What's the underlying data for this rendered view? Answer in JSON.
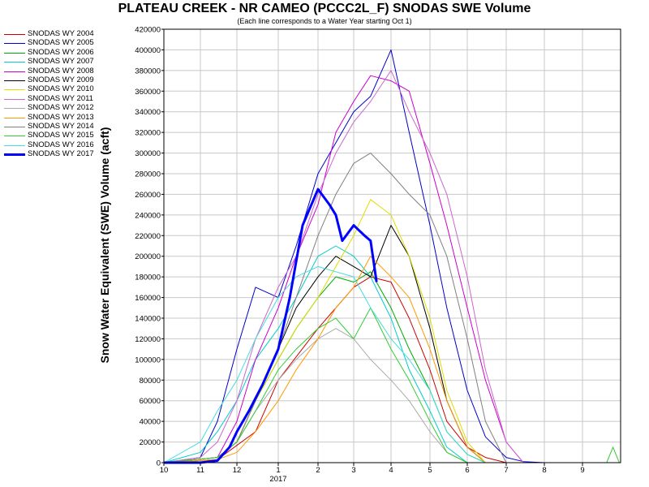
{
  "chart_data": {
    "type": "line",
    "title": "PLATEAU CREEK - NR CAMEO (PCCC2L_F) SNODAS SWE Volume",
    "subtitle": "(Each line corresponds to a Water Year starting Oct 1)",
    "ylabel": "Snow Water Equivalent (SWE) Volume (acft)",
    "xlabel": "",
    "x_year_label": "2017",
    "xticks": [
      "10",
      "11",
      "12",
      "1",
      "2",
      "3",
      "4",
      "5",
      "6",
      "7",
      "8",
      "9"
    ],
    "yticks": [
      "0",
      "20000",
      "40000",
      "60000",
      "80000",
      "100000",
      "120000",
      "140000",
      "160000",
      "180000",
      "200000",
      "220000",
      "240000",
      "260000",
      "280000",
      "300000",
      "320000",
      "340000",
      "360000",
      "380000",
      "400000",
      "420000"
    ],
    "ylim": [
      0,
      420000
    ],
    "grid": true,
    "legend_position": "left",
    "series": [
      {
        "name": "SNODAS WY 2004",
        "color": "#cc0000",
        "width": 1,
        "x": [
          "10-01",
          "11-15",
          "12-15",
          "01-01",
          "02-01",
          "03-01",
          "03-15",
          "04-01",
          "04-15",
          "05-01",
          "05-15",
          "06-01",
          "06-15",
          "07-01"
        ],
        "values": [
          0,
          3000,
          30000,
          80000,
          130000,
          170000,
          180000,
          175000,
          140000,
          90000,
          40000,
          15000,
          5000,
          0
        ]
      },
      {
        "name": "SNODAS WY 2005",
        "color": "#0000cc",
        "width": 1,
        "x": [
          "10-01",
          "11-01",
          "11-15",
          "12-01",
          "12-15",
          "01-01",
          "01-15",
          "02-01",
          "02-15",
          "03-01",
          "03-15",
          "04-01",
          "04-15",
          "05-01",
          "05-15",
          "06-01",
          "06-15",
          "07-01",
          "07-15",
          "08-01"
        ],
        "values": [
          0,
          5000,
          40000,
          110000,
          170000,
          160000,
          210000,
          280000,
          310000,
          340000,
          355000,
          400000,
          320000,
          230000,
          150000,
          70000,
          25000,
          5000,
          1000,
          0
        ]
      },
      {
        "name": "SNODAS WY 2006",
        "color": "#00aa00",
        "width": 1,
        "x": [
          "10-01",
          "11-15",
          "12-01",
          "12-15",
          "01-01",
          "01-15",
          "02-01",
          "02-15",
          "03-01",
          "03-15",
          "04-01",
          "04-15",
          "05-01",
          "05-15",
          "06-01",
          "06-15"
        ],
        "values": [
          0,
          5000,
          20000,
          60000,
          100000,
          130000,
          160000,
          180000,
          175000,
          185000,
          150000,
          110000,
          70000,
          30000,
          8000,
          0
        ]
      },
      {
        "name": "SNODAS WY 2007",
        "color": "#00cccc",
        "width": 1,
        "x": [
          "10-01",
          "11-01",
          "11-15",
          "12-01",
          "12-15",
          "01-01",
          "01-15",
          "02-01",
          "02-15",
          "03-01",
          "03-15",
          "04-01",
          "04-15",
          "05-01",
          "05-15",
          "06-01"
        ],
        "values": [
          0,
          10000,
          30000,
          60000,
          100000,
          130000,
          160000,
          200000,
          210000,
          200000,
          180000,
          140000,
          90000,
          50000,
          15000,
          0
        ]
      },
      {
        "name": "SNODAS WY 2008",
        "color": "#cc00cc",
        "width": 1,
        "x": [
          "10-01",
          "11-15",
          "12-01",
          "12-15",
          "01-01",
          "01-15",
          "02-01",
          "02-15",
          "03-01",
          "03-15",
          "04-01",
          "04-15",
          "05-01",
          "05-15",
          "06-01",
          "06-15",
          "07-01",
          "07-15"
        ],
        "values": [
          0,
          5000,
          40000,
          100000,
          150000,
          200000,
          250000,
          320000,
          350000,
          375000,
          370000,
          360000,
          290000,
          230000,
          150000,
          80000,
          20000,
          0
        ]
      },
      {
        "name": "SNODAS WY 2009",
        "color": "#000000",
        "width": 1,
        "x": [
          "10-01",
          "11-15",
          "12-01",
          "12-15",
          "01-01",
          "01-15",
          "02-01",
          "02-15",
          "03-01",
          "03-15",
          "04-01",
          "04-15",
          "05-01",
          "05-15",
          "06-01",
          "06-15"
        ],
        "values": [
          0,
          5000,
          20000,
          60000,
          110000,
          150000,
          180000,
          200000,
          190000,
          180000,
          230000,
          200000,
          130000,
          60000,
          15000,
          0
        ]
      },
      {
        "name": "SNODAS WY 2010",
        "color": "#dddd00",
        "width": 1,
        "x": [
          "10-01",
          "11-15",
          "12-01",
          "12-15",
          "01-01",
          "01-15",
          "02-01",
          "02-15",
          "03-01",
          "03-15",
          "04-01",
          "04-15",
          "05-01",
          "05-15",
          "06-01",
          "06-15"
        ],
        "values": [
          0,
          5000,
          20000,
          60000,
          100000,
          130000,
          160000,
          190000,
          220000,
          255000,
          240000,
          200000,
          140000,
          70000,
          20000,
          0
        ]
      },
      {
        "name": "SNODAS WY 2011",
        "color": "#cc66cc",
        "width": 1,
        "x": [
          "10-01",
          "11-01",
          "11-15",
          "12-01",
          "12-15",
          "01-01",
          "01-15",
          "02-01",
          "02-15",
          "03-01",
          "03-15",
          "04-01",
          "04-15",
          "05-01",
          "05-15",
          "06-01",
          "06-15",
          "07-01",
          "07-15"
        ],
        "values": [
          0,
          5000,
          20000,
          60000,
          120000,
          170000,
          200000,
          260000,
          300000,
          330000,
          350000,
          380000,
          340000,
          300000,
          260000,
          180000,
          90000,
          20000,
          0
        ]
      },
      {
        "name": "SNODAS WY 2012",
        "color": "#aaaaaa",
        "width": 1,
        "x": [
          "10-01",
          "11-15",
          "12-01",
          "12-15",
          "01-01",
          "01-15",
          "02-01",
          "02-15",
          "03-01",
          "03-15",
          "04-01",
          "04-15",
          "05-01",
          "05-15",
          "06-01"
        ],
        "values": [
          0,
          5000,
          20000,
          50000,
          80000,
          100000,
          120000,
          130000,
          120000,
          100000,
          80000,
          60000,
          30000,
          10000,
          0
        ]
      },
      {
        "name": "SNODAS WY 2013",
        "color": "#ff9900",
        "width": 1,
        "x": [
          "10-01",
          "11-15",
          "12-01",
          "12-15",
          "01-01",
          "01-15",
          "02-01",
          "02-15",
          "03-01",
          "03-15",
          "04-01",
          "04-15",
          "05-01",
          "05-15",
          "06-01",
          "06-15"
        ],
        "values": [
          0,
          3000,
          10000,
          30000,
          60000,
          90000,
          120000,
          150000,
          170000,
          200000,
          180000,
          160000,
          110000,
          60000,
          15000,
          0
        ]
      },
      {
        "name": "SNODAS WY 2014",
        "color": "#808080",
        "width": 1,
        "x": [
          "10-01",
          "11-15",
          "12-01",
          "12-15",
          "01-01",
          "01-15",
          "02-01",
          "02-15",
          "03-01",
          "03-15",
          "04-01",
          "04-15",
          "05-01",
          "05-15",
          "06-01",
          "06-15",
          "07-01"
        ],
        "values": [
          0,
          5000,
          20000,
          60000,
          110000,
          160000,
          220000,
          260000,
          290000,
          300000,
          280000,
          260000,
          240000,
          200000,
          120000,
          40000,
          0
        ]
      },
      {
        "name": "SNODAS WY 2015",
        "color": "#33cc33",
        "width": 1,
        "x": [
          "10-01",
          "11-15",
          "12-01",
          "12-15",
          "01-01",
          "01-15",
          "02-01",
          "02-15",
          "03-01",
          "03-15",
          "04-01",
          "04-15",
          "05-01",
          "05-15",
          "06-01",
          "09-20",
          "09-25",
          "09-30"
        ],
        "values": [
          0,
          5000,
          20000,
          50000,
          90000,
          110000,
          130000,
          140000,
          120000,
          150000,
          110000,
          80000,
          40000,
          10000,
          0,
          0,
          15000,
          0
        ]
      },
      {
        "name": "SNODAS WY 2016",
        "color": "#44dddd",
        "width": 1,
        "x": [
          "10-01",
          "11-01",
          "11-15",
          "12-01",
          "12-15",
          "01-01",
          "01-15",
          "02-01",
          "02-15",
          "03-01",
          "03-15",
          "04-01",
          "04-15",
          "05-01",
          "05-15",
          "06-01",
          "06-15"
        ],
        "values": [
          0,
          20000,
          50000,
          80000,
          120000,
          160000,
          180000,
          190000,
          185000,
          180000,
          150000,
          120000,
          100000,
          70000,
          30000,
          8000,
          0
        ]
      },
      {
        "name": "SNODAS WY 2017",
        "color": "#0000ff",
        "width": 3,
        "x": [
          "10-01",
          "10-15",
          "11-01",
          "11-15",
          "11-25",
          "12-01",
          "12-10",
          "12-20",
          "01-01",
          "01-10",
          "01-20",
          "02-01",
          "02-10",
          "02-15",
          "02-20",
          "03-01",
          "03-10",
          "03-15",
          "03-20"
        ],
        "values": [
          0,
          0,
          0,
          2000,
          15000,
          30000,
          50000,
          75000,
          110000,
          160000,
          230000,
          265000,
          250000,
          240000,
          215000,
          230000,
          220000,
          215000,
          175000
        ]
      }
    ]
  }
}
